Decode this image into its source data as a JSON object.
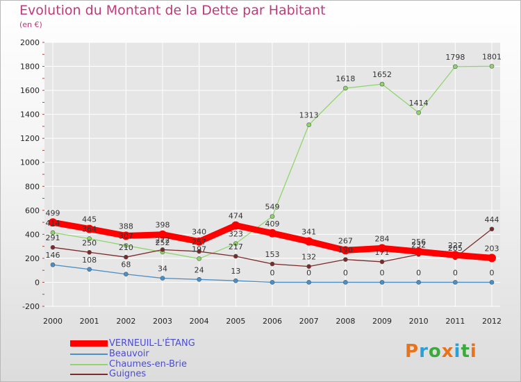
{
  "title": "Evolution du Montant de la Dette par Habitant",
  "subtitle": "(en €)",
  "logo_text": "Proxiti",
  "logo_colors": [
    "#e8731a",
    "#2aa0d8",
    "#3da83d",
    "#e8731a",
    "#2aa0d8",
    "#3da83d",
    "#e8731a"
  ],
  "colors": {
    "title": "#c0397a",
    "axis_text": "#222222",
    "legend_text": "#4b4bd8",
    "grid": "#ffffff"
  },
  "chart_data": {
    "type": "line",
    "title": "Evolution du Montant de la Dette par Habitant",
    "subtitle": "(en €)",
    "x": [
      "2000",
      "2001",
      "2002",
      "2003",
      "2004",
      "2005",
      "2006",
      "2007",
      "2008",
      "2009",
      "2010",
      "2011",
      "2012"
    ],
    "ylim": [
      -200,
      2000
    ],
    "yticks": [
      -200,
      0,
      200,
      400,
      600,
      800,
      1000,
      1200,
      1400,
      1600,
      1800,
      2000
    ],
    "grid": true,
    "legend_position": "bottom-left",
    "series": [
      {
        "name": "VERNEUIL-L'ÉTANG",
        "color": "#ff0000",
        "emphasis": true,
        "values": [
          499,
          445,
          388,
          398,
          340,
          474,
          409,
          341,
          267,
          284,
          256,
          227,
          203
        ]
      },
      {
        "name": "Beauvoir",
        "color": "#4a8fc7",
        "values": [
          146,
          108,
          68,
          34,
          24,
          13,
          0,
          0,
          0,
          0,
          0,
          0,
          0
        ]
      },
      {
        "name": "Chaumes-en-Brie",
        "color": "#8ed66a",
        "values": [
          414,
          364,
          307,
          252,
          197,
          323,
          549,
          1313,
          1618,
          1652,
          1414,
          1798,
          1801
        ]
      },
      {
        "name": "Guignes",
        "color": "#7a2a2a",
        "values": [
          291,
          250,
          210,
          272,
          257,
          217,
          153,
          132,
          190,
          171,
          232,
          205,
          444
        ]
      }
    ]
  }
}
